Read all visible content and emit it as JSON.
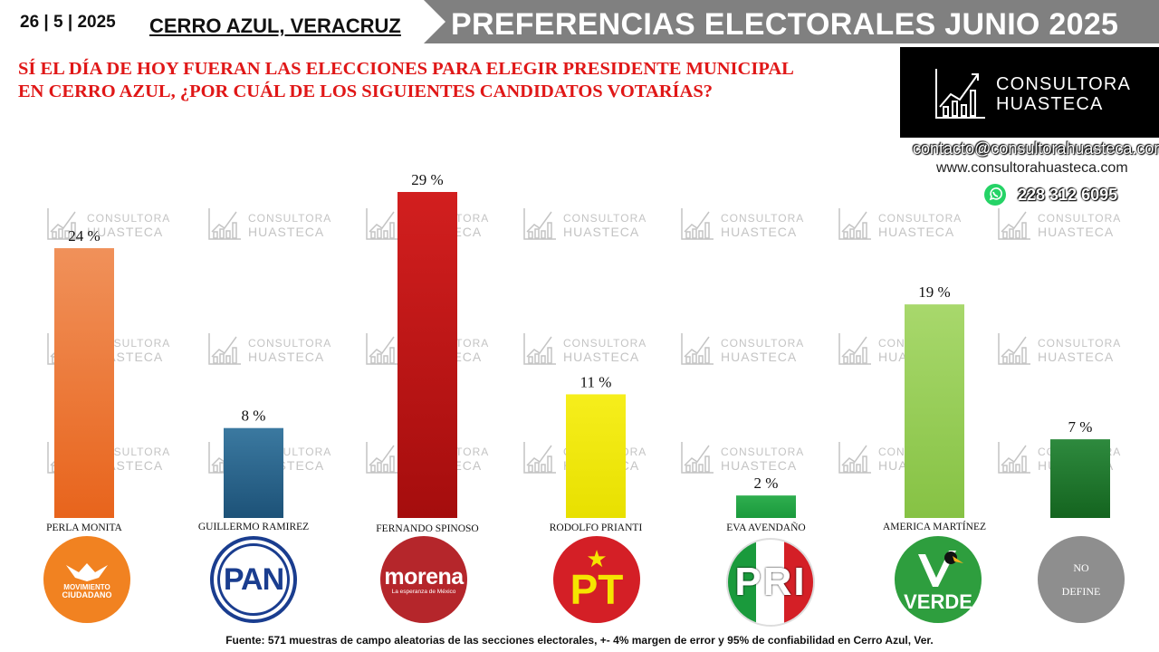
{
  "header": {
    "date": "26 | 5 | 2025",
    "location": "CERRO AZUL, VERACRUZ",
    "title": "PREFERENCIAS ELECTORALES JUNIO 2025"
  },
  "question": {
    "line1": "SÍ EL DÍA DE HOY FUERAN LAS ELECCIONES PARA ELEGIR PRESIDENTE MUNICIPAL",
    "line2": "EN CERRO AZUL,  ¿POR CUÁL DE LOS SIGUIENTES CANDIDATOS VOTARÍAS?"
  },
  "brand": {
    "line1": "CONSULTORA",
    "line2": "HUASTECA",
    "email": "contacto@consultorahuasteca.com",
    "website": "www.consultorahuasteca.com",
    "phone": "228 312 6095",
    "watermark_line1": "CONSULTORA",
    "watermark_line2": "HUASTECA"
  },
  "logos": {
    "mc_line1": "MOVIMIENTO",
    "mc_line2": "CIUDADANO",
    "pan": "PAN",
    "morena": "morena",
    "morena_sub": "La esperanza de México",
    "pt": "PT",
    "pri": "PRI",
    "verde": "VERDE",
    "nodefine_line1": "NO",
    "nodefine_line2": "DEFINE"
  },
  "chart_data": {
    "type": "bar",
    "categories": [
      "PERLA MONITA",
      "GUILLERMO RAMIREZ",
      "FERNANDO SPINOSO",
      "RODOLFO PRIANTI",
      "EVA AVENDAÑO",
      "AMERICA MARTÍNEZ",
      ""
    ],
    "values": [
      24,
      8,
      29,
      11,
      2,
      19,
      7
    ],
    "value_labels": [
      "24 %",
      "8 %",
      "29 %",
      "11 %",
      "2 %",
      "19 %",
      "7 %"
    ],
    "colors": [
      [
        "#f0915a",
        "#e8641c"
      ],
      [
        "#3b79a0",
        "#1d5278"
      ],
      [
        "#d21f1f",
        "#a50d0d"
      ],
      [
        "#f6ee1c",
        "#e8e000"
      ],
      [
        "#2fae4f",
        "#1a9a3c"
      ],
      [
        "#a8d86c",
        "#86c244"
      ],
      [
        "#2e8a3e",
        "#14641f"
      ]
    ],
    "ylim": [
      0,
      29
    ],
    "title": "PREFERENCIAS ELECTORALES JUNIO 2025",
    "xlabel": "",
    "ylabel": ""
  },
  "footer": {
    "source": "Fuente:  571 muestras de campo aleatorias de las  secciones electorales, +- 4% margen de error y 95% de confiabilidad en Cerro Azul, Ver."
  }
}
